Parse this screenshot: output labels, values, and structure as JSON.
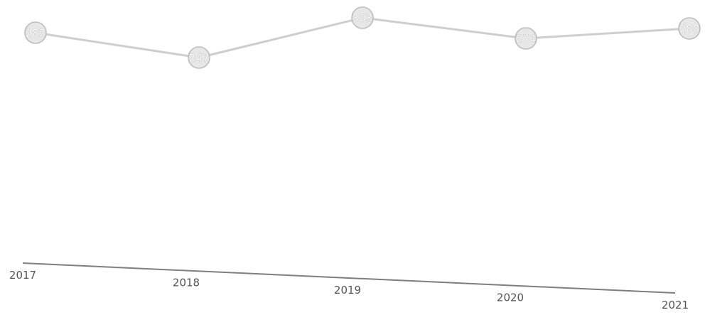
{
  "chart_data": {
    "type": "line",
    "categories": [
      "2017",
      "2018",
      "2019",
      "2020",
      "2021"
    ],
    "series": [
      {
        "values": [
          282,
          247,
          303,
          274,
          288
        ],
        "labels": [
          "282",
          "247",
          "303",
          "274",
          "288"
        ]
      }
    ],
    "title": "",
    "xlabel": "",
    "ylabel": "",
    "grid": false,
    "legend": "none",
    "colors": {
      "line": "#c9c9c9",
      "marker_fill": "#e7e7e7",
      "axis": "#7e7e7e",
      "tick_text": "#555555"
    }
  }
}
